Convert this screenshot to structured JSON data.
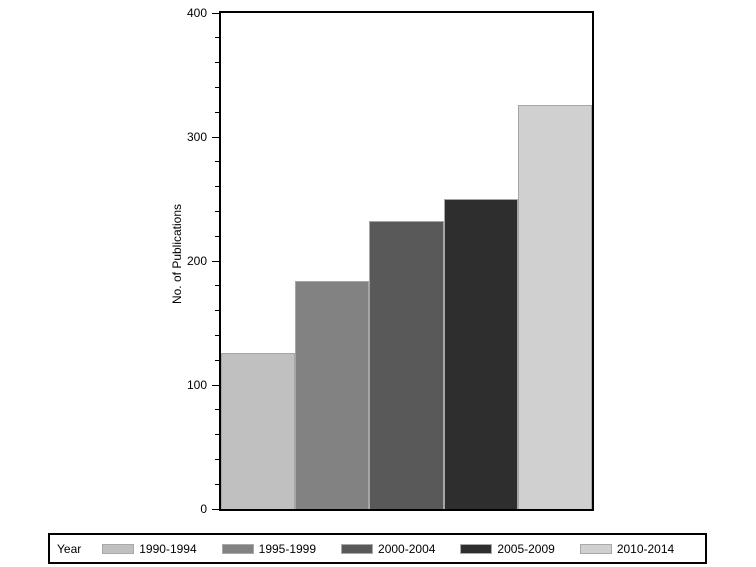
{
  "chart_data": {
    "type": "bar",
    "title": "",
    "xlabel": "",
    "ylabel": "No. of Publications",
    "categories": [
      "1990-1994",
      "1995-1999",
      "2000-2004",
      "2005-2009",
      "2010-2014"
    ],
    "values": [
      126,
      184,
      232,
      250,
      326
    ],
    "bar_colors": [
      "#c0c0c0",
      "#828282",
      "#595959",
      "#2e2e2e",
      "#d0d0d0"
    ],
    "ylim": [
      0,
      400
    ],
    "y_major_ticks": [
      0,
      100,
      200,
      300,
      400
    ],
    "y_minor_step": 20,
    "grid": false,
    "legend_position": "bottom",
    "legend_title": "Year",
    "frame_color": "#000000",
    "background_color": "#ffffff"
  }
}
